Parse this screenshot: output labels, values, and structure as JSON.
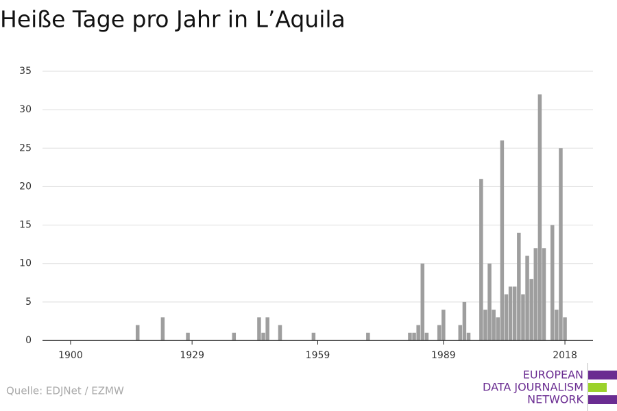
{
  "chart_data": {
    "type": "bar",
    "title": "Heiße Tage pro Jahr in L’Aquila",
    "source": "Quelle: EDJNet / EZMW",
    "logo": [
      "EUROPEAN",
      "DATA JOURNALISM",
      "NETWORK"
    ],
    "color": "#9e9e9e",
    "x": [
      1916,
      1922,
      1928,
      1939,
      1945,
      1946,
      1947,
      1950,
      1958,
      1971,
      1981,
      1982,
      1983,
      1984,
      1985,
      1988,
      1989,
      1993,
      1994,
      1995,
      1998,
      1999,
      2000,
      2001,
      2002,
      2003,
      2004,
      2005,
      2006,
      2007,
      2008,
      2009,
      2010,
      2011,
      2012,
      2013,
      2015,
      2016,
      2017,
      2018
    ],
    "values": [
      2,
      3,
      1,
      1,
      3,
      1,
      3,
      2,
      1,
      1,
      1,
      1,
      2,
      10,
      1,
      2,
      4,
      2,
      5,
      1,
      21,
      4,
      10,
      4,
      3,
      26,
      6,
      7,
      7,
      14,
      6,
      11,
      8,
      12,
      32,
      12,
      15,
      4,
      25,
      3
    ],
    "xlim": [
      1893.3,
      2024.7
    ],
    "xticks": [
      1900,
      1929,
      1959,
      1989,
      2018
    ],
    "ylim": [
      0,
      35
    ],
    "yticks": [
      0,
      5,
      10,
      15,
      20,
      25,
      30,
      35
    ],
    "grid": true
  }
}
